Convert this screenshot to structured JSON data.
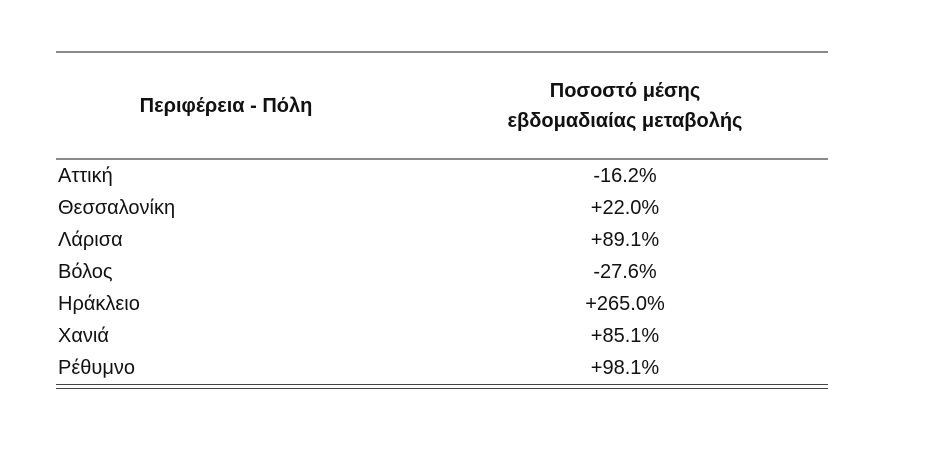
{
  "table": {
    "headers": {
      "region": "Περιφέρεια - Πόλη",
      "change_line1": "Ποσοστό μέσης",
      "change_line2": "εβδομαδιαίας μεταβολής"
    },
    "rows": [
      {
        "city": "Αττική",
        "value": "-16.2%"
      },
      {
        "city": "Θεσσαλονίκη",
        "value": "+22.0%"
      },
      {
        "city": "Λάρισα",
        "value": "+89.1%"
      },
      {
        "city": "Βόλος",
        "value": "-27.6%"
      },
      {
        "city": "Ηράκλειο",
        "value": "+265.0%"
      },
      {
        "city": "Χανιά",
        "value": "+85.1%"
      },
      {
        "city": "Ρέθυμνο",
        "value": "+98.1%"
      }
    ]
  }
}
